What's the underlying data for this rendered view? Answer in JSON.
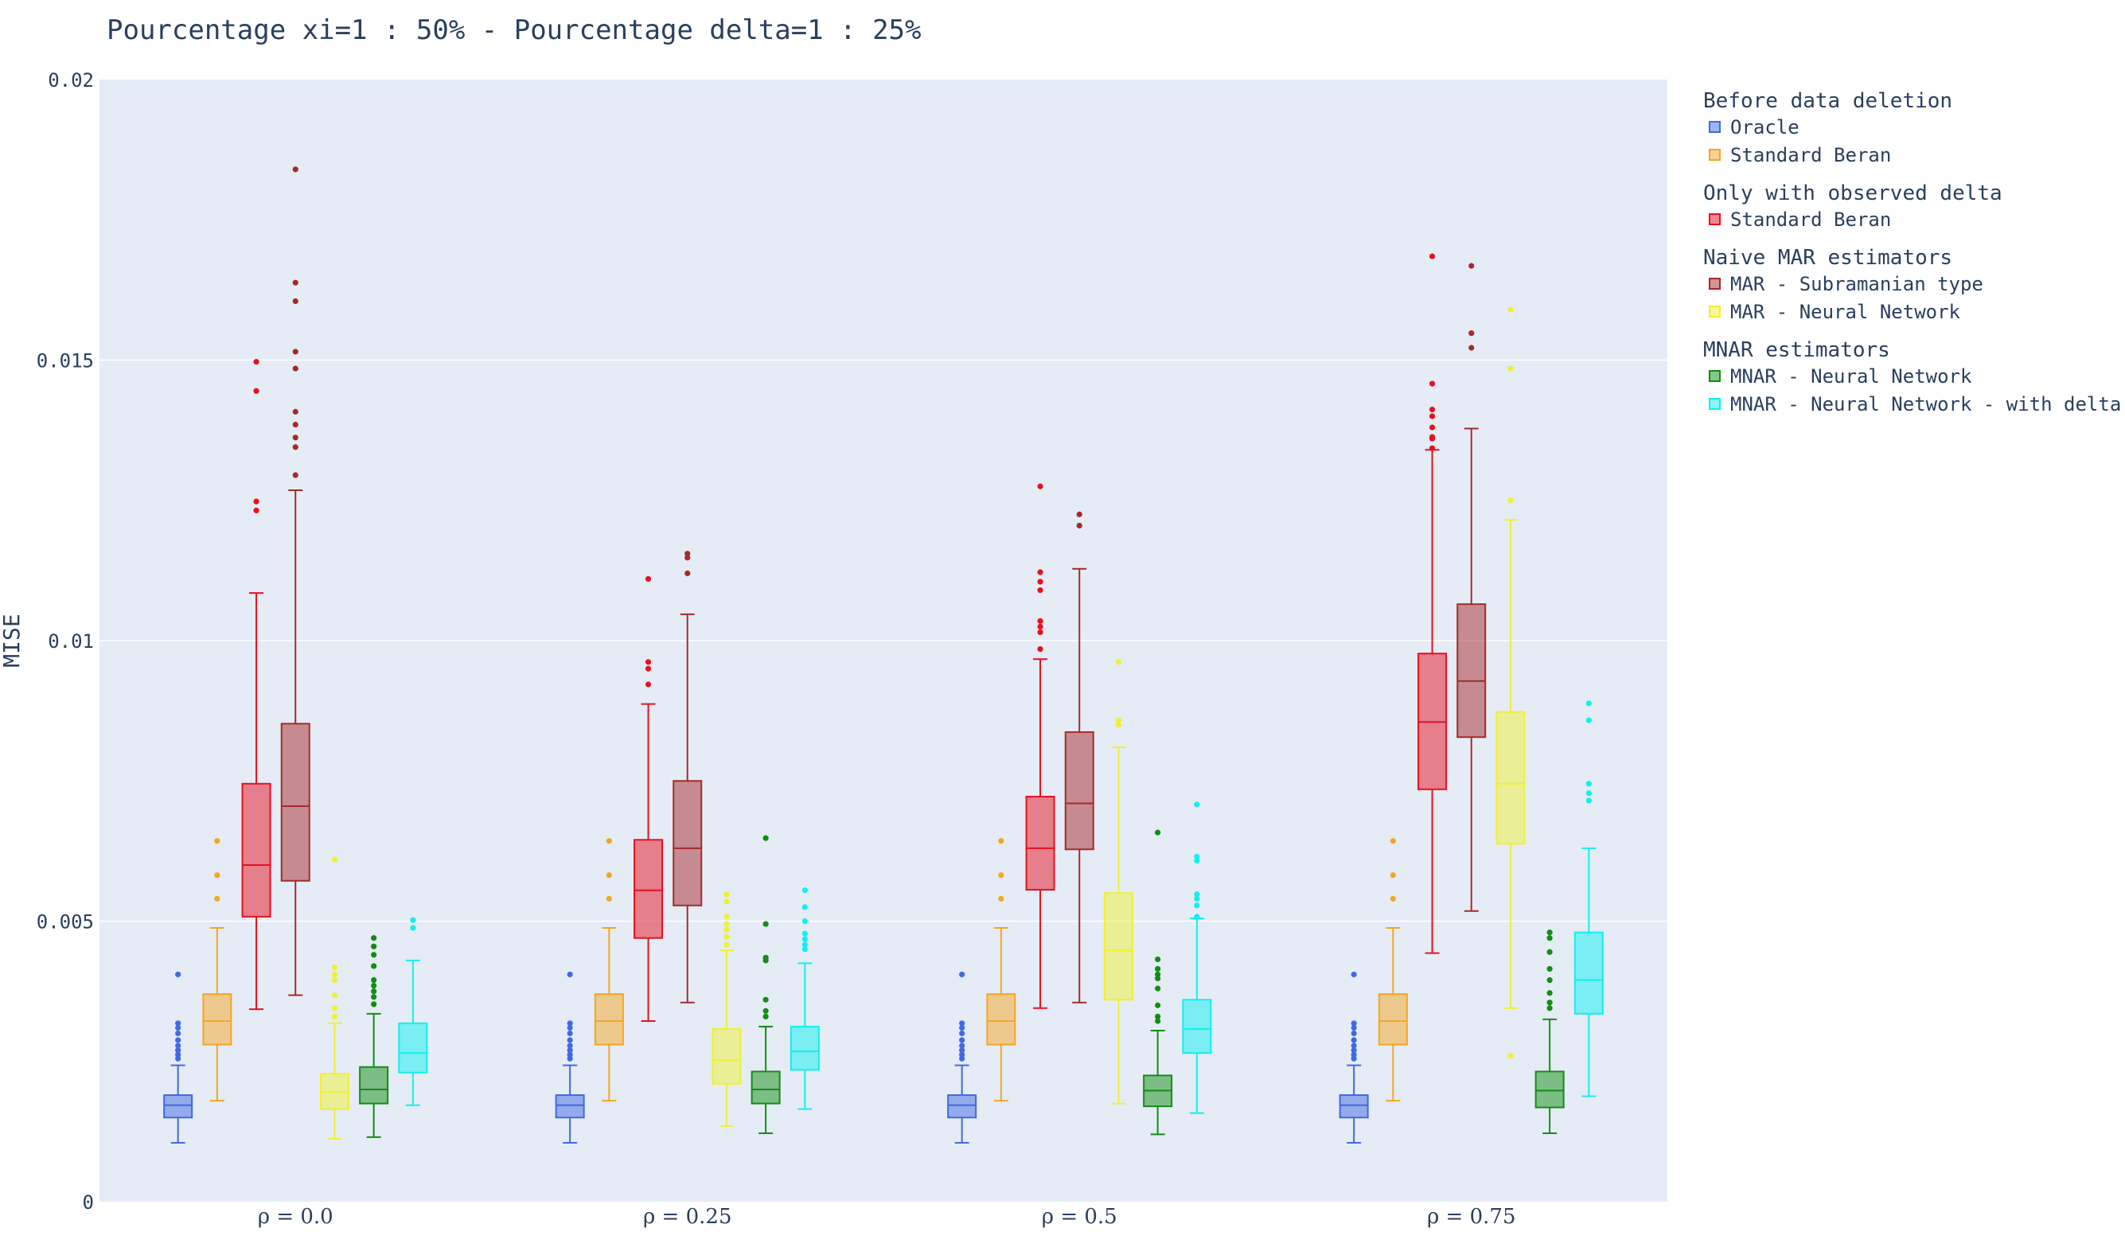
{
  "chart_data": {
    "type": "box",
    "title": "Pourcentage xi=1 : 50% - Pourcentage delta=1 : 25%",
    "ylabel": "MISE",
    "xlabel": "",
    "ylim": [
      0,
      0.02
    ],
    "yticks": [
      {
        "value": 0,
        "label": "0"
      },
      {
        "value": 0.005,
        "label": "0.005"
      },
      {
        "value": 0.01,
        "label": "0.01"
      },
      {
        "value": 0.015,
        "label": "0.015"
      },
      {
        "value": 0.02,
        "label": "0.02"
      }
    ],
    "grid": true,
    "legend_position": "right",
    "categories": [
      "ρ = 0.0",
      "ρ = 0.25",
      "ρ = 0.5",
      "ρ = 0.75"
    ],
    "legend_groups": [
      {
        "title": "Before data deletion",
        "series": [
          0,
          1
        ]
      },
      {
        "title": "Only with observed delta",
        "series": [
          2
        ]
      },
      {
        "title": "Naive MAR estimators",
        "series": [
          3,
          4
        ]
      },
      {
        "title": "MNAR estimators",
        "series": [
          5,
          6
        ]
      }
    ],
    "series": [
      {
        "name": "Oracle",
        "color": "#4169e1",
        "fill": "rgba(65,105,225,0.5)",
        "boxes": [
          {
            "lowerfence": 0.00105,
            "q1": 0.0015,
            "median": 0.00172,
            "q3": 0.0019,
            "upperfence": 0.00243,
            "outliers": [
              0.00255,
              0.00262,
              0.0027,
              0.00278,
              0.00288,
              0.003,
              0.0031,
              0.00318,
              0.00405
            ]
          },
          {
            "lowerfence": 0.00105,
            "q1": 0.0015,
            "median": 0.00172,
            "q3": 0.0019,
            "upperfence": 0.00243,
            "outliers": [
              0.00255,
              0.00262,
              0.0027,
              0.00278,
              0.00288,
              0.003,
              0.0031,
              0.00318,
              0.00405
            ]
          },
          {
            "lowerfence": 0.00105,
            "q1": 0.0015,
            "median": 0.00172,
            "q3": 0.0019,
            "upperfence": 0.00243,
            "outliers": [
              0.00255,
              0.00262,
              0.0027,
              0.00278,
              0.00288,
              0.003,
              0.0031,
              0.00318,
              0.00405
            ]
          },
          {
            "lowerfence": 0.00105,
            "q1": 0.0015,
            "median": 0.00172,
            "q3": 0.0019,
            "upperfence": 0.00243,
            "outliers": [
              0.00255,
              0.00262,
              0.0027,
              0.00278,
              0.00288,
              0.003,
              0.0031,
              0.00318,
              0.00405
            ]
          }
        ]
      },
      {
        "name": "Standard Beran",
        "color": "#f5a623",
        "fill": "rgba(245,166,35,0.5)",
        "boxes": [
          {
            "lowerfence": 0.0018,
            "q1": 0.0028,
            "median": 0.00322,
            "q3": 0.0037,
            "upperfence": 0.00488,
            "outliers": [
              0.0054,
              0.00582,
              0.00643
            ]
          },
          {
            "lowerfence": 0.0018,
            "q1": 0.0028,
            "median": 0.00322,
            "q3": 0.0037,
            "upperfence": 0.00488,
            "outliers": [
              0.0054,
              0.00582,
              0.00643
            ]
          },
          {
            "lowerfence": 0.0018,
            "q1": 0.0028,
            "median": 0.00322,
            "q3": 0.0037,
            "upperfence": 0.00488,
            "outliers": [
              0.0054,
              0.00582,
              0.00643
            ]
          },
          {
            "lowerfence": 0.0018,
            "q1": 0.0028,
            "median": 0.00322,
            "q3": 0.0037,
            "upperfence": 0.00488,
            "outliers": [
              0.0054,
              0.00582,
              0.00643
            ]
          }
        ]
      },
      {
        "name": "Standard Beran",
        "color": "#e8101f",
        "fill": "rgba(232,16,31,0.5)",
        "boxes": [
          {
            "lowerfence": 0.00343,
            "q1": 0.00508,
            "median": 0.006,
            "q3": 0.00745,
            "upperfence": 0.01085,
            "outliers": [
              0.01232,
              0.01248,
              0.01445,
              0.01497
            ]
          },
          {
            "lowerfence": 0.00322,
            "q1": 0.0047,
            "median": 0.00555,
            "q3": 0.00645,
            "upperfence": 0.00887,
            "outliers": [
              0.00922,
              0.0095,
              0.00962,
              0.0111
            ]
          },
          {
            "lowerfence": 0.00345,
            "q1": 0.00556,
            "median": 0.0063,
            "q3": 0.00722,
            "upperfence": 0.00967,
            "outliers": [
              0.00985,
              0.01015,
              0.01025,
              0.01035,
              0.0109,
              0.01105,
              0.01122,
              0.01275
            ]
          },
          {
            "lowerfence": 0.00443,
            "q1": 0.00735,
            "median": 0.00855,
            "q3": 0.00977,
            "upperfence": 0.0134,
            "outliers": [
              0.01343,
              0.0136,
              0.01363,
              0.0138,
              0.014,
              0.01412,
              0.01458,
              0.01685
            ]
          }
        ]
      },
      {
        "name": "MAR - Subramanian type",
        "color": "#a52a2a",
        "fill": "rgba(165,42,42,0.5)",
        "boxes": [
          {
            "lowerfence": 0.00368,
            "q1": 0.00572,
            "median": 0.00705,
            "q3": 0.00852,
            "upperfence": 0.01268,
            "outliers": [
              0.01295,
              0.01345,
              0.01362,
              0.01385,
              0.01408,
              0.01485,
              0.01515,
              0.01605,
              0.01638,
              0.0184
            ]
          },
          {
            "lowerfence": 0.00355,
            "q1": 0.00528,
            "median": 0.0063,
            "q3": 0.0075,
            "upperfence": 0.01047,
            "outliers": [
              0.0112,
              0.01148,
              0.01155
            ]
          },
          {
            "lowerfence": 0.00355,
            "q1": 0.00628,
            "median": 0.0071,
            "q3": 0.00837,
            "upperfence": 0.01128,
            "outliers": [
              0.01205,
              0.01225
            ]
          },
          {
            "lowerfence": 0.00518,
            "q1": 0.00828,
            "median": 0.00928,
            "q3": 0.01065,
            "upperfence": 0.01378,
            "outliers": [
              0.01522,
              0.01548,
              0.01668
            ]
          }
        ]
      },
      {
        "name": "MAR - Neural Network",
        "color": "#f0f034",
        "fill": "rgba(240,240,52,0.5)",
        "boxes": [
          {
            "lowerfence": 0.00112,
            "q1": 0.00165,
            "median": 0.00195,
            "q3": 0.00228,
            "upperfence": 0.00318,
            "outliers": [
              0.0033,
              0.00345,
              0.00368,
              0.00395,
              0.00405,
              0.00418,
              0.0061
            ]
          },
          {
            "lowerfence": 0.00135,
            "q1": 0.0021,
            "median": 0.00252,
            "q3": 0.00308,
            "upperfence": 0.00448,
            "outliers": [
              0.00458,
              0.00472,
              0.00485,
              0.00495,
              0.00508,
              0.00535,
              0.00548
            ]
          },
          {
            "lowerfence": 0.00175,
            "q1": 0.0036,
            "median": 0.00448,
            "q3": 0.0055,
            "upperfence": 0.0081,
            "outliers": [
              0.0085,
              0.00858,
              0.00962
            ]
          },
          {
            "lowerfence": 0.00345,
            "q1": 0.00638,
            "median": 0.00745,
            "q3": 0.00873,
            "upperfence": 0.01215,
            "outliers": [
              0.0026,
              0.0125,
              0.01485,
              0.0159
            ]
          }
        ]
      },
      {
        "name": "MNAR - Neural Network",
        "color": "#138d13",
        "fill": "rgba(19,141,19,0.5)",
        "boxes": [
          {
            "lowerfence": 0.00115,
            "q1": 0.00175,
            "median": 0.002,
            "q3": 0.0024,
            "upperfence": 0.00335,
            "outliers": [
              0.00352,
              0.00365,
              0.00375,
              0.00385,
              0.00395,
              0.0042,
              0.0044,
              0.00455,
              0.0047
            ]
          },
          {
            "lowerfence": 0.00122,
            "q1": 0.00175,
            "median": 0.002,
            "q3": 0.00232,
            "upperfence": 0.00312,
            "outliers": [
              0.0033,
              0.0034,
              0.0036,
              0.0043,
              0.00435,
              0.00495,
              0.00648
            ]
          },
          {
            "lowerfence": 0.0012,
            "q1": 0.0017,
            "median": 0.00198,
            "q3": 0.00225,
            "upperfence": 0.00305,
            "outliers": [
              0.00322,
              0.0033,
              0.0035,
              0.0038,
              0.00398,
              0.00405,
              0.00415,
              0.00432,
              0.00658
            ]
          },
          {
            "lowerfence": 0.00122,
            "q1": 0.00168,
            "median": 0.00198,
            "q3": 0.00232,
            "upperfence": 0.00325,
            "outliers": [
              0.00345,
              0.00355,
              0.00372,
              0.00395,
              0.00415,
              0.00445,
              0.0047,
              0.0048
            ]
          }
        ]
      },
      {
        "name": "MNAR - Neural Network - with delta",
        "color": "#10f0f0",
        "fill": "rgba(16,240,240,0.5)",
        "boxes": [
          {
            "lowerfence": 0.00172,
            "q1": 0.0023,
            "median": 0.00265,
            "q3": 0.00318,
            "upperfence": 0.0043,
            "outliers": [
              0.00488,
              0.00502
            ]
          },
          {
            "lowerfence": 0.00165,
            "q1": 0.00235,
            "median": 0.00268,
            "q3": 0.00312,
            "upperfence": 0.00425,
            "outliers": [
              0.0045,
              0.00458,
              0.00468,
              0.00478,
              0.005,
              0.00525,
              0.00555
            ]
          },
          {
            "lowerfence": 0.00158,
            "q1": 0.00265,
            "median": 0.00308,
            "q3": 0.0036,
            "upperfence": 0.00505,
            "outliers": [
              0.00508,
              0.00528,
              0.0054,
              0.00548,
              0.00608,
              0.00615,
              0.00708
            ]
          },
          {
            "lowerfence": 0.00188,
            "q1": 0.00335,
            "median": 0.00395,
            "q3": 0.0048,
            "upperfence": 0.0063,
            "outliers": [
              0.00715,
              0.00728,
              0.00745,
              0.00858,
              0.00888
            ]
          }
        ]
      }
    ]
  }
}
